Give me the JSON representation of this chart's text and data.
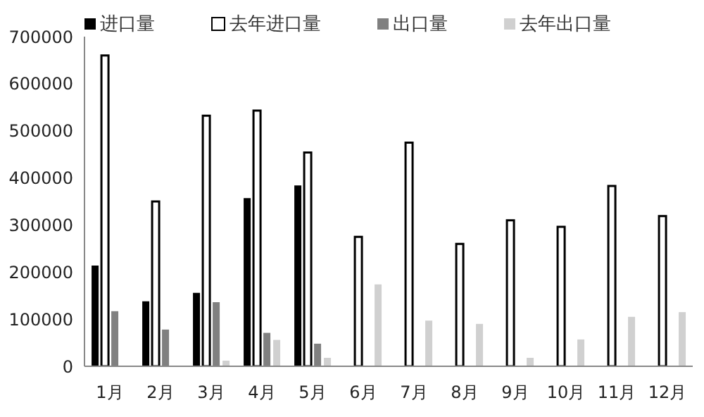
{
  "chart_data": {
    "type": "bar",
    "categories": [
      "1月",
      "2月",
      "3月",
      "4月",
      "5月",
      "6月",
      "7月",
      "8月",
      "9月",
      "10月",
      "11月",
      "12月"
    ],
    "series": [
      {
        "name": "进口量",
        "color": "#000000",
        "values": [
          214000,
          138000,
          156000,
          357000,
          384000,
          null,
          null,
          null,
          null,
          null,
          null,
          null
        ]
      },
      {
        "name": "去年进口量",
        "color": "#ffffff",
        "values": [
          660000,
          350000,
          532000,
          543000,
          454000,
          275000,
          475000,
          260000,
          310000,
          296000,
          383000,
          319000
        ]
      },
      {
        "name": "出口量",
        "color": "#808080",
        "values": [
          117000,
          78000,
          136000,
          71000,
          48000,
          null,
          null,
          null,
          null,
          null,
          null,
          null
        ]
      },
      {
        "name": "去年出口量",
        "color": "#d0d0d0",
        "values": [
          null,
          null,
          12000,
          56000,
          18000,
          174000,
          97000,
          90000,
          18000,
          57000,
          105000,
          115000
        ]
      }
    ],
    "ylim": [
      0,
      700000
    ],
    "yticks": [
      0,
      100000,
      200000,
      300000,
      400000,
      500000,
      600000,
      700000
    ],
    "grid": false,
    "legend": "top"
  }
}
